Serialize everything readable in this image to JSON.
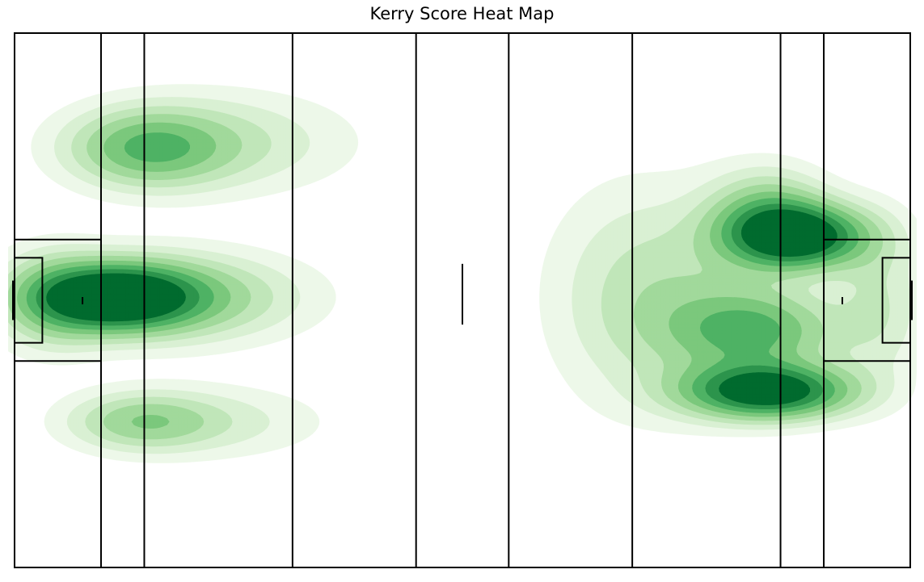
{
  "chart_data": {
    "type": "heatmap",
    "title": "Kerry Score Heat Map",
    "xlabel": "",
    "ylabel": "",
    "xlim": [
      0,
      145
    ],
    "ylim": [
      0,
      88
    ],
    "grid": false,
    "colormap": [
      "#edf8e9",
      "#d9f0d3",
      "#c0e6b9",
      "#a1d99b",
      "#7bc87c",
      "#4eb264",
      "#2c944c",
      "#006b2e"
    ],
    "pitch_lines_x": [
      0,
      14,
      21,
      45,
      65,
      80,
      100,
      124,
      131,
      145
    ],
    "small_box": {
      "depth": 4.5,
      "y_range": [
        37,
        51
      ]
    },
    "large_box": {
      "depth": 14,
      "y_range": [
        34,
        54
      ]
    },
    "goal_y_range": [
      40.75,
      47.25
    ],
    "penalty_mark_x": [
      11,
      134
    ],
    "halfway_mark_y": [
      40,
      50
    ],
    "density_clusters": [
      {
        "x": 16.5,
        "y": 44.5,
        "sx": 8.5,
        "sy": 3.6,
        "weight": 1.0
      },
      {
        "x": 6.0,
        "y": 44.0,
        "sx": 6.0,
        "sy": 5.5,
        "weight": 0.3
      },
      {
        "x": 27.0,
        "y": 44.5,
        "sx": 13.0,
        "sy": 4.8,
        "weight": 0.38
      },
      {
        "x": 21.5,
        "y": 69.0,
        "sx": 8.5,
        "sy": 4.2,
        "weight": 0.45
      },
      {
        "x": 33.0,
        "y": 70.0,
        "sx": 14.0,
        "sy": 5.5,
        "weight": 0.22
      },
      {
        "x": 20.5,
        "y": 24.0,
        "sx": 8.0,
        "sy": 3.2,
        "weight": 0.34
      },
      {
        "x": 33.0,
        "y": 24.0,
        "sx": 12.0,
        "sy": 4.0,
        "weight": 0.15
      },
      {
        "x": 127.0,
        "y": 54.5,
        "sx": 7.5,
        "sy": 3.5,
        "weight": 0.95
      },
      {
        "x": 122.0,
        "y": 58.0,
        "sx": 6.5,
        "sy": 5.0,
        "weight": 0.4
      },
      {
        "x": 122.0,
        "y": 29.0,
        "sx": 9.0,
        "sy": 3.0,
        "weight": 1.0
      },
      {
        "x": 120.0,
        "y": 39.0,
        "sx": 9.0,
        "sy": 4.5,
        "weight": 0.5
      },
      {
        "x": 108.0,
        "y": 44.0,
        "sx": 11.0,
        "sy": 11.0,
        "weight": 0.22
      },
      {
        "x": 98.0,
        "y": 45.0,
        "sx": 9.0,
        "sy": 13.0,
        "weight": 0.1
      },
      {
        "x": 140.0,
        "y": 44.0,
        "sx": 5.0,
        "sy": 9.0,
        "weight": 0.2
      }
    ]
  }
}
